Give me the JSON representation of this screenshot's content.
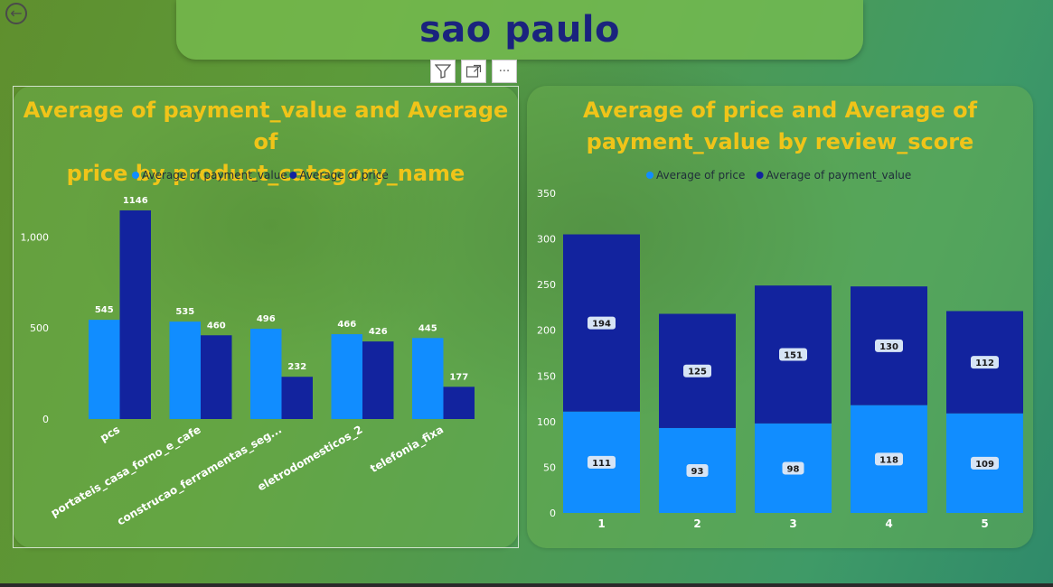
{
  "page_title": "sao paulo",
  "back_icon": "arrow-left-icon",
  "visual_header": {
    "icons": [
      "filter-icon",
      "focus-mode-icon",
      "more-options-icon"
    ],
    "more_label": "···"
  },
  "colors": {
    "light_blue": "#118dff",
    "dark_blue": "#12239e",
    "title_yellow": "#f0c419",
    "page_title": "#1a237e"
  },
  "chart_data": [
    {
      "type": "bar",
      "title": "Average of payment_value and Average of price by product_category_name",
      "title_lines": [
        "Average of payment_value and Average of",
        "price by product_category_name"
      ],
      "legend": [
        "Average of payment_value",
        "Average of price"
      ],
      "legend_position": "top-center",
      "categories": [
        "pcs",
        "portateis_casa_forno_e_cafe",
        "construcao_ferramentas_seg...",
        "eletrodomesticos_2",
        "telefonia_fixa"
      ],
      "series": [
        {
          "name": "Average of payment_value",
          "values": [
            545,
            535,
            496,
            466,
            445
          ]
        },
        {
          "name": "Average of price",
          "values": [
            1146,
            460,
            232,
            426,
            177
          ]
        }
      ],
      "data_labels": [
        [
          "545",
          "535",
          "496",
          "466",
          "445"
        ],
        [
          "1146",
          "460",
          "232",
          "426",
          "177"
        ]
      ],
      "yticks": [
        "0",
        "500",
        "1,000"
      ],
      "ylim": [
        0,
        1250
      ],
      "grid": false
    },
    {
      "type": "bar",
      "stacked": true,
      "title": "Average of price and Average of payment_value by review_score",
      "title_lines": [
        "Average of price and Average of",
        "payment_value by review_score"
      ],
      "legend": [
        "Average of price",
        "Average of payment_value"
      ],
      "legend_position": "top-center",
      "categories": [
        "1",
        "2",
        "3",
        "4",
        "5"
      ],
      "series": [
        {
          "name": "Average of price",
          "values": [
            111,
            93,
            98,
            118,
            109
          ]
        },
        {
          "name": "Average of payment_value",
          "values": [
            194,
            125,
            151,
            130,
            112
          ]
        }
      ],
      "data_labels": [
        [
          "111",
          "93",
          "98",
          "118",
          "109"
        ],
        [
          "194",
          "125",
          "151",
          "130",
          "112"
        ]
      ],
      "yticks": [
        "0",
        "50",
        "100",
        "150",
        "200",
        "250",
        "300",
        "350"
      ],
      "ylim": [
        0,
        350
      ],
      "grid": false
    }
  ]
}
